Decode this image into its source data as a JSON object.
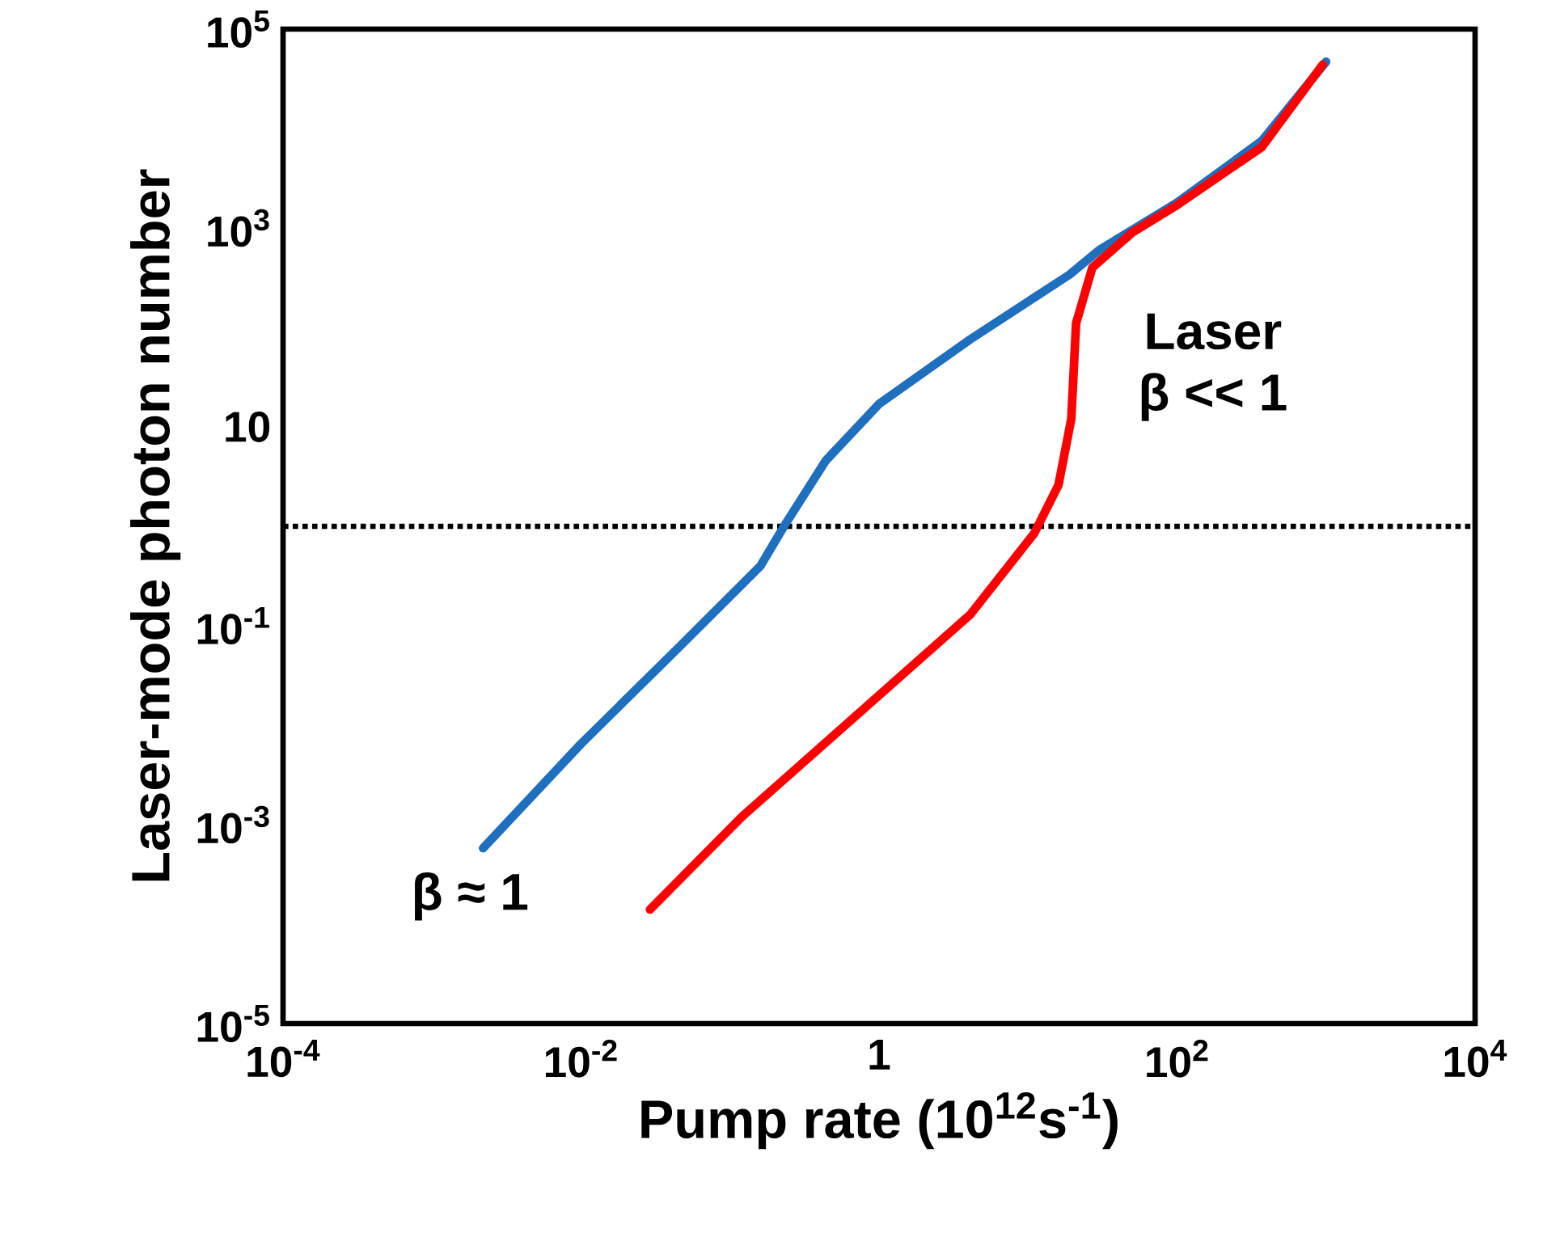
{
  "chart_data": {
    "type": "line",
    "xlabel": "Pump rate (10$^{12}$s$^{-1}$)",
    "ylabel": "Laser-mode photon number",
    "log": "xy",
    "grid": false,
    "xlim": [
      0.0001,
      10000
    ],
    "ylim": [
      1e-05,
      100000
    ],
    "xticks": [
      {
        "value": 0.0001,
        "label": "10$^{-4}$"
      },
      {
        "value": 0.01,
        "label": "10$^{-2}$"
      },
      1,
      {
        "value": 100,
        "label": "10$^{2}$"
      },
      {
        "value": 10000,
        "label": "10$^{4}$"
      }
    ],
    "yticks": [
      {
        "value": 1e-05,
        "label": "10$^{-5}$"
      },
      {
        "value": 0.001,
        "label": "10$^{-3}$"
      },
      {
        "value": 0.1,
        "label": "10$^{-1}$"
      },
      10,
      {
        "value": 1000,
        "label": "10$^{3}$"
      },
      {
        "value": 100000,
        "label": "10$^{5}$"
      }
    ],
    "series": [
      {
        "name": "β ≈ 1",
        "color": "#1f6fbf",
        "x": [
          0.0022,
          0.01,
          0.046,
          0.16,
          0.23,
          0.44,
          1,
          4.1,
          19,
          30,
          100,
          370,
          1000
        ],
        "values": [
          0.00058,
          0.0065,
          0.062,
          0.4,
          1,
          4.6,
          17,
          76,
          340,
          600,
          1800,
          7500,
          47000
        ]
      },
      {
        "name": "β << 1",
        "color": "#ff0000",
        "x": [
          0.029,
          0.12,
          1,
          4.1,
          11,
          16,
          19.5,
          21,
          27,
          50,
          100,
          370,
          950
        ],
        "values": [
          0.00014,
          0.0012,
          0.02,
          0.13,
          0.85,
          2.6,
          12,
          110,
          400,
          900,
          1700,
          6500,
          44000
        ]
      }
    ],
    "ref_lines": [
      {
        "axis": "y",
        "value": 1,
        "line_style": "dotted",
        "color": "#000000"
      }
    ],
    "annotations": [
      "Laser"
    ]
  }
}
